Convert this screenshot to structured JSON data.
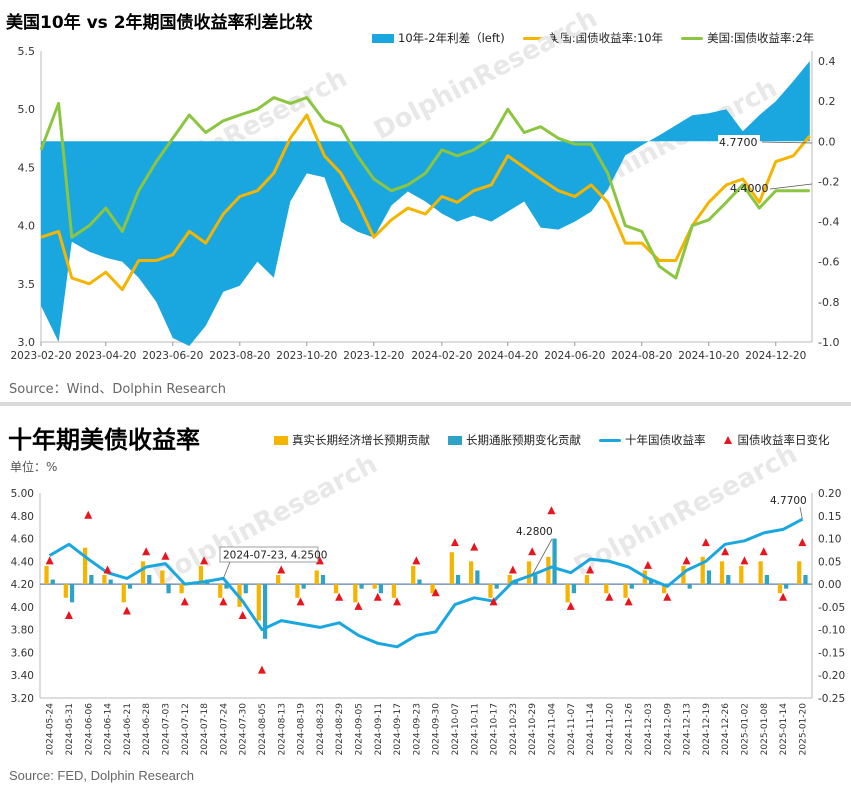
{
  "panel1": {
    "title": "美国10年 vs 2年期国债收益率利差比较",
    "source": "Source：Wind、Dolphin Research",
    "legend": [
      {
        "label": "10年-2年利差（left)",
        "kind": "area",
        "color": "#1aa7e0"
      },
      {
        "label": "美国:国债收益率:10年",
        "kind": "line",
        "color": "#f5b400"
      },
      {
        "label": "美国:国债收益率:2年",
        "kind": "line",
        "color": "#8cc640"
      }
    ],
    "watermark": "DolphinResearch"
  },
  "panel2": {
    "title": "十年期美债收益率",
    "unit_label": "单位：%",
    "source": "Source: FED, Dolphin Research",
    "legend": [
      {
        "label": "真实长期经济增长预期贡献",
        "kind": "bar",
        "color": "#f5b400"
      },
      {
        "label": "长期通胀预期变化贡献",
        "kind": "bar",
        "color": "#2fa3c6"
      },
      {
        "label": "十年国债收益率",
        "kind": "line",
        "color": "#1aa7e0"
      },
      {
        "label": "国债收益率日变化",
        "kind": "marker",
        "color": "#e8141e"
      }
    ],
    "watermark": "DolphinResearch"
  },
  "chart_data": [
    {
      "type": "line",
      "title": "美国10年 vs 2年期国债收益率利差比较",
      "x_ticks": [
        "2023-02-20",
        "2023-04-20",
        "2023-06-20",
        "2023-08-20",
        "2023-10-20",
        "2023-12-20",
        "2024-02-20",
        "2024-04-20",
        "2024-06-20",
        "2024-08-20",
        "2024-10-20",
        "2024-12-20"
      ],
      "y_left": {
        "ticks": [
          "3.0",
          "3.5",
          "4.0",
          "4.5",
          "5.0",
          "5.5"
        ],
        "range": [
          3.0,
          5.5
        ]
      },
      "y_right": {
        "ticks": [
          "-1.0",
          "-0.8",
          "-0.6",
          "-0.4",
          "-0.2",
          "0.0",
          "0.2",
          "0.4"
        ],
        "range": [
          -1.0,
          0.45
        ]
      },
      "annotations": [
        "4.7700",
        "4.4000"
      ],
      "series": [
        {
          "name": "10年-2年利差（left)",
          "kind": "area",
          "axis": "right",
          "x": [
            "2023-02-20",
            "2023-03-08",
            "2023-03-20",
            "2023-04-05",
            "2023-04-20",
            "2023-05-05",
            "2023-05-20",
            "2023-06-05",
            "2023-06-20",
            "2023-07-05",
            "2023-07-20",
            "2023-08-05",
            "2023-08-20",
            "2023-09-05",
            "2023-09-20",
            "2023-10-05",
            "2023-10-20",
            "2023-11-05",
            "2023-11-20",
            "2023-12-05",
            "2023-12-20",
            "2024-01-05",
            "2024-01-20",
            "2024-02-05",
            "2024-02-20",
            "2024-03-05",
            "2024-03-20",
            "2024-04-05",
            "2024-04-20",
            "2024-05-05",
            "2024-05-20",
            "2024-06-05",
            "2024-06-20",
            "2024-07-05",
            "2024-07-20",
            "2024-08-05",
            "2024-08-20",
            "2024-09-05",
            "2024-09-20",
            "2024-10-05",
            "2024-10-20",
            "2024-11-05",
            "2024-11-20",
            "2024-12-05",
            "2024-12-20",
            "2025-01-05",
            "2025-01-20"
          ],
          "y": [
            -0.82,
            -1.0,
            -0.5,
            -0.55,
            -0.58,
            -0.6,
            -0.68,
            -0.8,
            -0.98,
            -1.02,
            -0.92,
            -0.75,
            -0.72,
            -0.6,
            -0.68,
            -0.3,
            -0.16,
            -0.18,
            -0.4,
            -0.45,
            -0.48,
            -0.32,
            -0.25,
            -0.3,
            -0.36,
            -0.4,
            -0.37,
            -0.4,
            -0.35,
            -0.3,
            -0.43,
            -0.44,
            -0.4,
            -0.35,
            -0.24,
            -0.07,
            -0.02,
            0.03,
            0.08,
            0.13,
            0.14,
            0.16,
            0.05,
            0.13,
            0.2,
            0.3,
            0.4
          ]
        },
        {
          "name": "美国:国债收益率:10年",
          "kind": "line",
          "axis": "left",
          "color": "#f5b400",
          "x": [
            "2023-02-20",
            "2023-03-08",
            "2023-03-20",
            "2023-04-05",
            "2023-04-20",
            "2023-05-05",
            "2023-05-20",
            "2023-06-05",
            "2023-06-20",
            "2023-07-05",
            "2023-07-20",
            "2023-08-05",
            "2023-08-20",
            "2023-09-05",
            "2023-09-20",
            "2023-10-05",
            "2023-10-20",
            "2023-11-05",
            "2023-11-20",
            "2023-12-05",
            "2023-12-20",
            "2024-01-05",
            "2024-01-20",
            "2024-02-05",
            "2024-02-20",
            "2024-03-05",
            "2024-03-20",
            "2024-04-05",
            "2024-04-20",
            "2024-05-05",
            "2024-05-20",
            "2024-06-05",
            "2024-06-20",
            "2024-07-05",
            "2024-07-20",
            "2024-08-05",
            "2024-08-20",
            "2024-09-05",
            "2024-09-20",
            "2024-10-05",
            "2024-10-20",
            "2024-11-05",
            "2024-11-20",
            "2024-12-05",
            "2024-12-20",
            "2025-01-05",
            "2025-01-20"
          ],
          "y": [
            3.9,
            3.95,
            3.55,
            3.5,
            3.6,
            3.45,
            3.7,
            3.7,
            3.75,
            3.95,
            3.85,
            4.1,
            4.25,
            4.3,
            4.45,
            4.75,
            4.95,
            4.6,
            4.45,
            4.2,
            3.9,
            4.05,
            4.15,
            4.1,
            4.25,
            4.2,
            4.3,
            4.35,
            4.6,
            4.5,
            4.4,
            4.3,
            4.25,
            4.35,
            4.2,
            3.85,
            3.85,
            3.7,
            3.7,
            4.0,
            4.2,
            4.35,
            4.4,
            4.2,
            4.55,
            4.6,
            4.77
          ]
        },
        {
          "name": "美国:国债收益率:2年",
          "kind": "line",
          "axis": "left",
          "color": "#8cc640",
          "x": [
            "2023-02-20",
            "2023-03-08",
            "2023-03-20",
            "2023-04-05",
            "2023-04-20",
            "2023-05-05",
            "2023-05-20",
            "2023-06-05",
            "2023-06-20",
            "2023-07-05",
            "2023-07-20",
            "2023-08-05",
            "2023-08-20",
            "2023-09-05",
            "2023-09-20",
            "2023-10-05",
            "2023-10-20",
            "2023-11-05",
            "2023-11-20",
            "2023-12-05",
            "2023-12-20",
            "2024-01-05",
            "2024-01-20",
            "2024-02-05",
            "2024-02-20",
            "2024-03-05",
            "2024-03-20",
            "2024-04-05",
            "2024-04-20",
            "2024-05-05",
            "2024-05-20",
            "2024-06-05",
            "2024-06-20",
            "2024-07-05",
            "2024-07-20",
            "2024-08-05",
            "2024-08-20",
            "2024-09-05",
            "2024-09-20",
            "2024-10-05",
            "2024-10-20",
            "2024-11-05",
            "2024-11-20",
            "2024-12-05",
            "2024-12-20",
            "2025-01-05",
            "2025-01-20"
          ],
          "y": [
            4.65,
            5.05,
            3.9,
            4.0,
            4.15,
            3.95,
            4.3,
            4.55,
            4.75,
            4.95,
            4.8,
            4.9,
            4.95,
            5.0,
            5.1,
            5.05,
            5.1,
            4.9,
            4.85,
            4.6,
            4.4,
            4.3,
            4.35,
            4.45,
            4.65,
            4.6,
            4.65,
            4.75,
            5.0,
            4.8,
            4.85,
            4.75,
            4.7,
            4.7,
            4.45,
            4.0,
            3.95,
            3.65,
            3.55,
            4.0,
            4.05,
            4.2,
            4.35,
            4.15,
            4.3,
            4.3,
            4.3
          ]
        }
      ]
    },
    {
      "type": "bar",
      "title": "十年期美债收益率",
      "x_ticks": [
        "2024-05-24",
        "2024-05-31",
        "2024-06-06",
        "2024-06-14",
        "2024-06-21",
        "2024-06-28",
        "2024-07-03",
        "2024-07-12",
        "2024-07-18",
        "2024-07-24",
        "2024-07-30",
        "2024-08-05",
        "2024-08-13",
        "2024-08-19",
        "2024-08-23",
        "2024-08-29",
        "2024-09-05",
        "2024-09-11",
        "2024-09-17",
        "2024-09-23",
        "2024-09-30",
        "2024-10-07",
        "2024-10-11",
        "2024-10-17",
        "2024-10-23",
        "2024-10-29",
        "2024-11-04",
        "2024-11-07",
        "2024-11-14",
        "2024-11-20",
        "2024-11-26",
        "2024-12-03",
        "2024-12-09",
        "2024-12-13",
        "2024-12-19",
        "2024-12-26",
        "2025-01-02",
        "2025-01-08",
        "2025-01-14",
        "2025-01-20"
      ],
      "y_left": {
        "ticks": [
          "3.20",
          "3.40",
          "3.60",
          "3.80",
          "4.00",
          "4.20",
          "4.40",
          "4.60",
          "4.80",
          "5.00"
        ],
        "range": [
          3.2,
          5.0
        ]
      },
      "y_right": {
        "ticks": [
          "-0.25",
          "-0.20",
          "-0.15",
          "-0.10",
          "-0.05",
          "0.00",
          "0.05",
          "0.10",
          "0.15",
          "0.20"
        ],
        "range": [
          -0.25,
          0.2
        ]
      },
      "annotations": [
        "2024-07-23, 4.2500",
        "4.2800",
        "4.7700"
      ],
      "series": [
        {
          "name": "十年国债收益率",
          "kind": "line",
          "axis": "left",
          "color": "#1aa7e0",
          "x": [
            "2024-05-24",
            "2024-05-31",
            "2024-06-06",
            "2024-06-14",
            "2024-06-21",
            "2024-06-28",
            "2024-07-03",
            "2024-07-12",
            "2024-07-18",
            "2024-07-24",
            "2024-07-30",
            "2024-08-05",
            "2024-08-13",
            "2024-08-19",
            "2024-08-23",
            "2024-08-29",
            "2024-09-05",
            "2024-09-11",
            "2024-09-17",
            "2024-09-23",
            "2024-09-30",
            "2024-10-07",
            "2024-10-11",
            "2024-10-17",
            "2024-10-23",
            "2024-10-29",
            "2024-11-04",
            "2024-11-07",
            "2024-11-14",
            "2024-11-20",
            "2024-11-26",
            "2024-12-03",
            "2024-12-09",
            "2024-12-13",
            "2024-12-19",
            "2024-12-26",
            "2025-01-02",
            "2025-01-08",
            "2025-01-14",
            "2025-01-20"
          ],
          "y": [
            4.45,
            4.55,
            4.42,
            4.3,
            4.25,
            4.35,
            4.38,
            4.2,
            4.22,
            4.25,
            4.05,
            3.8,
            3.88,
            3.85,
            3.82,
            3.86,
            3.75,
            3.68,
            3.65,
            3.75,
            3.78,
            4.02,
            4.08,
            4.05,
            4.22,
            4.28,
            4.35,
            4.3,
            4.42,
            4.4,
            4.35,
            4.25,
            4.18,
            4.32,
            4.4,
            4.55,
            4.58,
            4.65,
            4.68,
            4.77
          ]
        },
        {
          "name": "真实长期经济增长预期贡献",
          "kind": "bar",
          "axis": "right",
          "color": "#f5b400",
          "y": [
            0.04,
            -0.03,
            0.08,
            0.02,
            -0.04,
            0.05,
            0.03,
            -0.02,
            0.04,
            -0.03,
            -0.05,
            -0.08,
            0.02,
            -0.03,
            0.03,
            -0.02,
            -0.04,
            -0.01,
            -0.03,
            0.04,
            -0.02,
            0.07,
            0.05,
            -0.03,
            0.02,
            0.05,
            0.06,
            -0.04,
            0.02,
            -0.02,
            -0.03,
            0.03,
            -0.02,
            0.04,
            0.06,
            0.05,
            0.04,
            0.05,
            -0.02,
            0.05
          ]
        },
        {
          "name": "长期通胀预期变化贡献",
          "kind": "bar",
          "axis": "right",
          "color": "#2fa3c6",
          "y": [
            0.01,
            -0.04,
            0.02,
            0.01,
            -0.01,
            0.02,
            -0.02,
            0.0,
            0.01,
            -0.01,
            -0.02,
            -0.12,
            0.0,
            -0.01,
            0.02,
            0.0,
            -0.01,
            -0.02,
            0.0,
            0.01,
            0.0,
            0.02,
            0.03,
            -0.01,
            0.01,
            0.02,
            0.1,
            -0.02,
            0.0,
            0.0,
            -0.01,
            0.01,
            0.0,
            -0.01,
            0.03,
            0.02,
            0.0,
            0.02,
            -0.01,
            0.02
          ]
        },
        {
          "name": "国债收益率日变化",
          "kind": "marker",
          "axis": "right",
          "color": "#e8141e",
          "y": [
            0.05,
            -0.07,
            0.15,
            0.03,
            -0.06,
            0.07,
            0.06,
            -0.04,
            0.05,
            -0.04,
            -0.07,
            -0.19,
            0.03,
            -0.04,
            0.05,
            -0.03,
            -0.05,
            -0.03,
            -0.04,
            0.05,
            -0.02,
            0.09,
            0.08,
            -0.04,
            0.03,
            0.07,
            0.16,
            -0.05,
            0.03,
            -0.03,
            -0.04,
            0.04,
            -0.03,
            0.05,
            0.09,
            0.07,
            0.05,
            0.07,
            -0.03,
            0.09
          ]
        }
      ]
    }
  ]
}
